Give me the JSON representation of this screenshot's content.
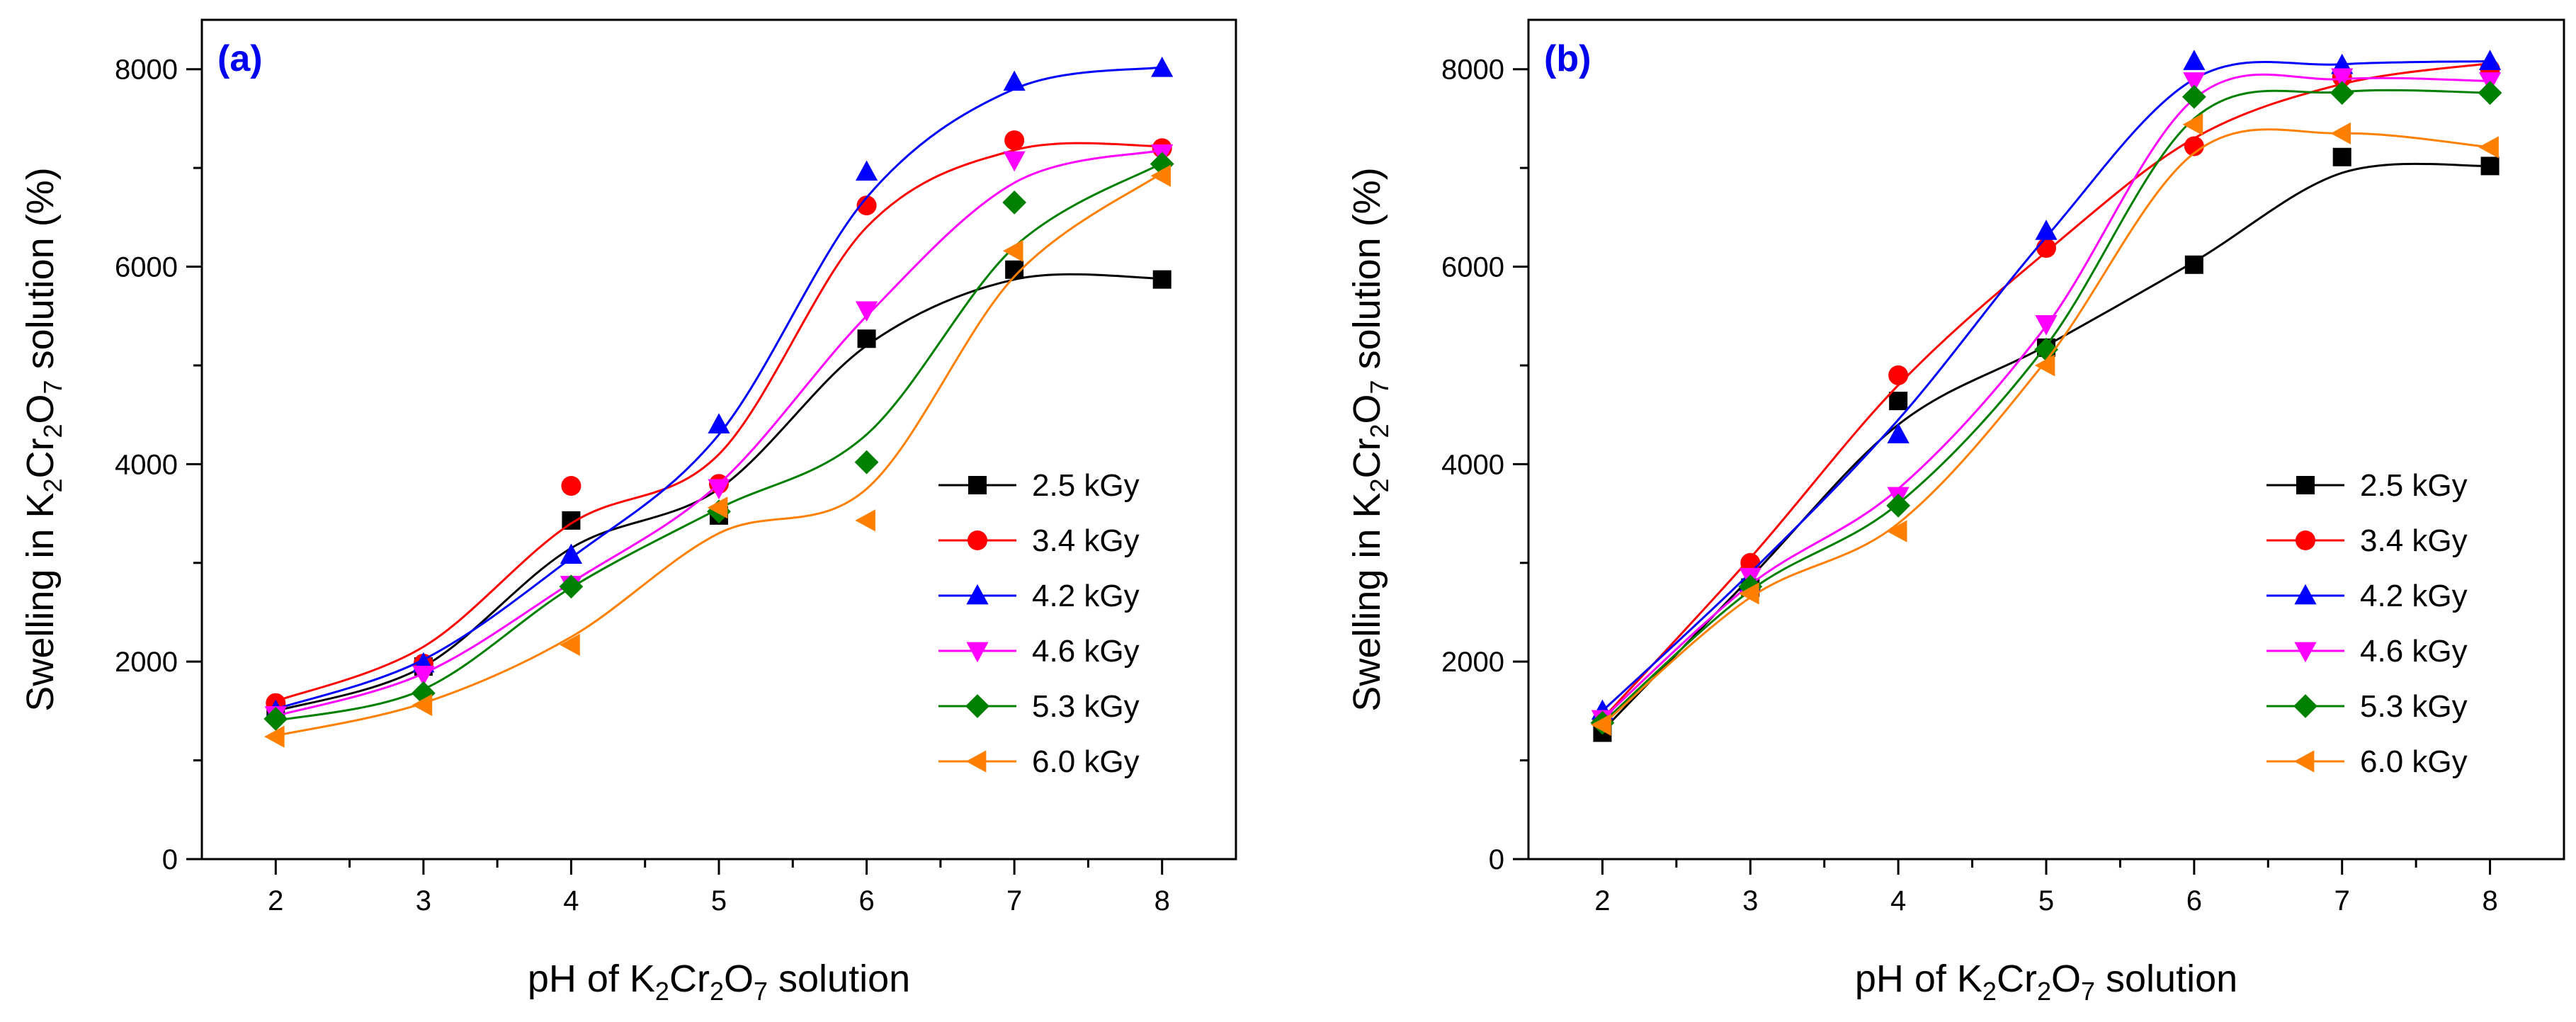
{
  "chart_data": [
    {
      "type": "scatter",
      "panel_label": "(a)",
      "xlabel": {
        "prefix": "pH of K",
        "s1": "2",
        "mid": "Cr",
        "s2": "2",
        "mid2": "O",
        "s3": "7",
        "suffix": " solution"
      },
      "ylabel": {
        "prefix": "Swelling in K",
        "s1": "2",
        "mid": "Cr",
        "s2": "2",
        "mid2": "O",
        "s3": "7",
        "suffix": " solution (%)"
      },
      "xlim": [
        1.5,
        8.5
      ],
      "ylim": [
        0,
        8500
      ],
      "xticks": [
        2,
        3,
        4,
        5,
        6,
        7,
        8
      ],
      "yticks": [
        0,
        2000,
        4000,
        6000,
        8000
      ],
      "legend_position": "lower-right",
      "x": [
        2,
        3,
        4,
        5,
        6,
        7,
        8
      ],
      "series": [
        {
          "name": "2.5 kGy",
          "color": "#000000",
          "marker": "square",
          "values": [
            1500,
            1950,
            3430,
            3480,
            5270,
            5970,
            5870
          ],
          "fit": [
            1500,
            1950,
            3150,
            3750,
            5200,
            5870,
            5880
          ]
        },
        {
          "name": "3.4 kGy",
          "color": "#ff0000",
          "marker": "circle",
          "values": [
            1580,
            1980,
            3780,
            3800,
            6620,
            7280,
            7200
          ],
          "fit": [
            1600,
            2150,
            3400,
            4100,
            6400,
            7180,
            7220
          ]
        },
        {
          "name": "4.2 kGy",
          "color": "#0000ff",
          "marker": "triangle-up",
          "values": [
            1500,
            1980,
            3080,
            4400,
            6960,
            7870,
            8010
          ],
          "fit": [
            1520,
            2020,
            3050,
            4300,
            6700,
            7800,
            8020
          ]
        },
        {
          "name": "4.6 kGy",
          "color": "#ff00ff",
          "marker": "triangle-down",
          "values": [
            1460,
            1870,
            2780,
            3760,
            5560,
            7080,
            7150
          ],
          "fit": [
            1450,
            1880,
            2800,
            3800,
            5500,
            6850,
            7180
          ]
        },
        {
          "name": "5.3 kGy",
          "color": "#008000",
          "marker": "diamond",
          "values": [
            1420,
            1680,
            2760,
            3520,
            4020,
            6650,
            7040
          ],
          "fit": [
            1400,
            1720,
            2750,
            3550,
            4300,
            6200,
            7050
          ]
        },
        {
          "name": "6.0 kGy",
          "color": "#ff8000",
          "marker": "triangle-left",
          "values": [
            1240,
            1560,
            2170,
            3560,
            3430,
            6160,
            6920
          ],
          "fit": [
            1250,
            1580,
            2250,
            3300,
            3750,
            5900,
            6950
          ]
        }
      ]
    },
    {
      "type": "scatter",
      "panel_label": "(b)",
      "xlabel": {
        "prefix": "pH of K",
        "s1": "2",
        "mid": "Cr",
        "s2": "2",
        "mid2": "O",
        "s3": "7",
        "suffix": " solution"
      },
      "ylabel": {
        "prefix": "Swelling in K",
        "s1": "2",
        "mid": "Cr",
        "s2": "2",
        "mid2": "O",
        "s3": "7",
        "suffix": " solution (%)"
      },
      "xlim": [
        1.5,
        8.5
      ],
      "ylim": [
        0,
        8500
      ],
      "xticks": [
        2,
        3,
        4,
        5,
        6,
        7,
        8
      ],
      "yticks": [
        0,
        2000,
        4000,
        6000,
        8000
      ],
      "legend_position": "lower-right",
      "x": [
        2,
        3,
        4,
        5,
        6,
        7,
        8
      ],
      "series": [
        {
          "name": "2.5 kGy",
          "color": "#000000",
          "marker": "square",
          "values": [
            1280,
            2750,
            4640,
            5180,
            6020,
            7110,
            7020
          ],
          "fit": [
            1300,
            2850,
            4400,
            5200,
            6050,
            6950,
            7020
          ]
        },
        {
          "name": "3.4 kGy",
          "color": "#ff0000",
          "marker": "circle",
          "values": [
            1400,
            3000,
            4900,
            6190,
            7220,
            7920,
            8000
          ],
          "fit": [
            1420,
            3050,
            4800,
            6150,
            7300,
            7850,
            8060
          ]
        },
        {
          "name": "4.2 kGy",
          "color": "#0000ff",
          "marker": "triangle-up",
          "values": [
            1500,
            2800,
            4300,
            6360,
            8080,
            8040,
            8080
          ],
          "fit": [
            1500,
            2900,
            4450,
            6300,
            7900,
            8050,
            8080
          ]
        },
        {
          "name": "4.6 kGy",
          "color": "#ff00ff",
          "marker": "triangle-down",
          "values": [
            1420,
            2860,
            3680,
            5420,
            7880,
            7920,
            7880
          ],
          "fit": [
            1420,
            2780,
            3750,
            5400,
            7700,
            7900,
            7880
          ]
        },
        {
          "name": "5.3 kGy",
          "color": "#008000",
          "marker": "diamond",
          "values": [
            1380,
            2760,
            3580,
            5160,
            7720,
            7760,
            7760
          ],
          "fit": [
            1380,
            2720,
            3600,
            5200,
            7500,
            7770,
            7760
          ]
        },
        {
          "name": "6.0 kGy",
          "color": "#ff8000",
          "marker": "triangle-left",
          "values": [
            1360,
            2690,
            3320,
            5000,
            7440,
            7350,
            7210
          ],
          "fit": [
            1360,
            2650,
            3400,
            5050,
            7150,
            7350,
            7210
          ]
        }
      ]
    }
  ]
}
